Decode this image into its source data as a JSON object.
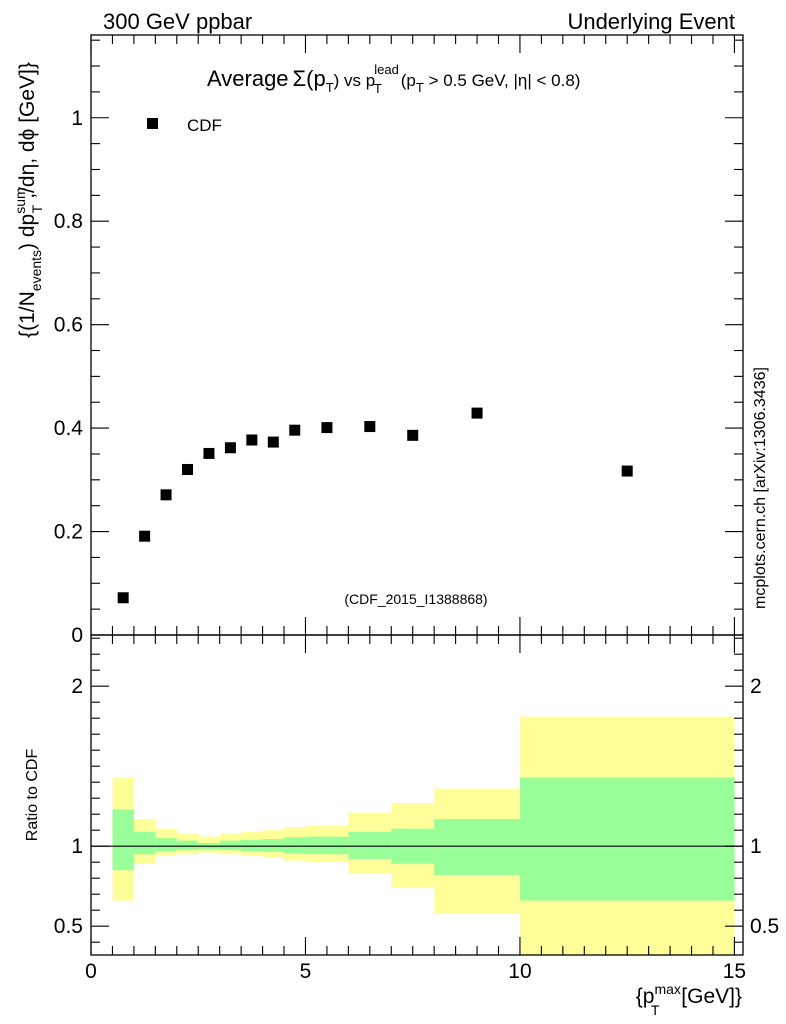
{
  "header": {
    "left": "300 GeV ppbar",
    "right": "Underlying Event"
  },
  "watermark": "mcplots.cern.ch [arXiv:1306.3436]",
  "chart_data": {
    "type": "scatter",
    "title_parts": {
      "a": "Average",
      "b": "Σ(p",
      "c": "T",
      "d": ") vs p",
      "e": "lead",
      "f": "T",
      "g": "(p",
      "h": "T",
      "i": " > 0.5 GeV, |η| < 0.8)"
    },
    "ylabel_parts": {
      "a": "{(1/N",
      "b": "events",
      "c": ") dp",
      "d": "sum",
      "e": "T",
      "f": ",/dη, dϕ [GeV]}"
    },
    "xlabel_parts": {
      "a": "{p",
      "b": "max",
      "c": "T",
      "d": " [GeV]}"
    },
    "ratio_ylabel": "Ratio to CDF",
    "analysis_label": "(CDF_2015_I1388868)",
    "legend": {
      "entry": "CDF",
      "position": "top-left"
    },
    "xlim": [
      0,
      15.2
    ],
    "ylim_main": [
      0,
      1.16
    ],
    "ylim_ratio": [
      0.32,
      2.32
    ],
    "main_y_ticks": [
      {
        "v": 0,
        "label": "0"
      },
      {
        "v": 0.2,
        "label": "0.2"
      },
      {
        "v": 0.4,
        "label": "0.4"
      },
      {
        "v": 0.6,
        "label": "0.6"
      },
      {
        "v": 0.8,
        "label": "0.8"
      },
      {
        "v": 1,
        "label": "1"
      }
    ],
    "x_ticks": [
      {
        "v": 0,
        "label": "0"
      },
      {
        "v": 5,
        "label": "5"
      },
      {
        "v": 10,
        "label": "10"
      },
      {
        "v": 15,
        "label": "15"
      }
    ],
    "ratio_y_ticks": [
      {
        "v": 0.5,
        "label": "0.5"
      },
      {
        "v": 1,
        "label": "1"
      },
      {
        "v": 2,
        "label": "2"
      }
    ],
    "series": [
      {
        "name": "CDF",
        "color": "#000000",
        "points": [
          {
            "x": 0.75,
            "y": 0.072
          },
          {
            "x": 1.25,
            "y": 0.191
          },
          {
            "x": 1.75,
            "y": 0.271
          },
          {
            "x": 2.25,
            "y": 0.32
          },
          {
            "x": 2.75,
            "y": 0.351
          },
          {
            "x": 3.25,
            "y": 0.362
          },
          {
            "x": 3.75,
            "y": 0.377
          },
          {
            "x": 4.25,
            "y": 0.373
          },
          {
            "x": 4.75,
            "y": 0.396
          },
          {
            "x": 5.5,
            "y": 0.401
          },
          {
            "x": 6.5,
            "y": 0.403
          },
          {
            "x": 7.5,
            "y": 0.386
          },
          {
            "x": 9.0,
            "y": 0.429
          },
          {
            "x": 12.5,
            "y": 0.317
          }
        ]
      }
    ],
    "ratio_bands": [
      {
        "x0": 0.5,
        "x1": 1.0,
        "in_lo": 0.85,
        "in_hi": 1.23,
        "out_lo": 0.66,
        "out_hi": 1.43
      },
      {
        "x0": 1.0,
        "x1": 1.5,
        "in_lo": 0.95,
        "in_hi": 1.09,
        "out_lo": 0.89,
        "out_hi": 1.17
      },
      {
        "x0": 1.5,
        "x1": 2.0,
        "in_lo": 0.97,
        "in_hi": 1.05,
        "out_lo": 0.94,
        "out_hi": 1.11
      },
      {
        "x0": 2.0,
        "x1": 2.5,
        "in_lo": 0.975,
        "in_hi": 1.035,
        "out_lo": 0.95,
        "out_hi": 1.08
      },
      {
        "x0": 2.5,
        "x1": 3.0,
        "in_lo": 0.98,
        "in_hi": 1.02,
        "out_lo": 0.96,
        "out_hi": 1.06
      },
      {
        "x0": 3.0,
        "x1": 3.5,
        "in_lo": 0.975,
        "in_hi": 1.035,
        "out_lo": 0.95,
        "out_hi": 1.08
      },
      {
        "x0": 3.5,
        "x1": 4.0,
        "in_lo": 0.97,
        "in_hi": 1.04,
        "out_lo": 0.94,
        "out_hi": 1.09
      },
      {
        "x0": 4.0,
        "x1": 4.5,
        "in_lo": 0.965,
        "in_hi": 1.045,
        "out_lo": 0.93,
        "out_hi": 1.1
      },
      {
        "x0": 4.5,
        "x1": 5.0,
        "in_lo": 0.955,
        "in_hi": 1.055,
        "out_lo": 0.91,
        "out_hi": 1.12
      },
      {
        "x0": 5.0,
        "x1": 6.0,
        "in_lo": 0.95,
        "in_hi": 1.06,
        "out_lo": 0.9,
        "out_hi": 1.13
      },
      {
        "x0": 6.0,
        "x1": 7.0,
        "in_lo": 0.92,
        "in_hi": 1.09,
        "out_lo": 0.83,
        "out_hi": 1.21
      },
      {
        "x0": 7.0,
        "x1": 8.0,
        "in_lo": 0.89,
        "in_hi": 1.11,
        "out_lo": 0.74,
        "out_hi": 1.27
      },
      {
        "x0": 8.0,
        "x1": 10.0,
        "in_lo": 0.82,
        "in_hi": 1.17,
        "out_lo": 0.58,
        "out_hi": 1.36
      },
      {
        "x0": 10.0,
        "x1": 15.0,
        "in_lo": 0.66,
        "in_hi": 1.43,
        "out_lo": 0.32,
        "out_hi": 1.81
      }
    ],
    "band_colors": {
      "outer": "#ffff99",
      "inner": "#99ff99",
      "line": "#000000",
      "marker": "#000000",
      "analysis": "#999999",
      "watermark": "#777777"
    }
  }
}
